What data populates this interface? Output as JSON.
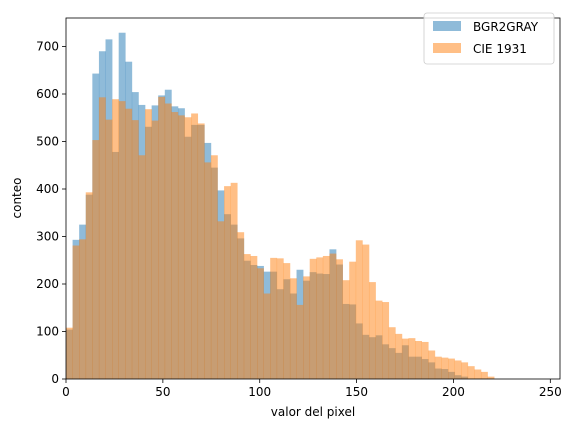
{
  "chart_data": {
    "type": "bar",
    "title": "",
    "xlabel": "valor del pixel",
    "ylabel": "conteo",
    "xlim": [
      0,
      255
    ],
    "ylim": [
      0,
      760
    ],
    "xticks": [
      0,
      50,
      100,
      150,
      200,
      250
    ],
    "yticks": [
      0,
      100,
      200,
      300,
      400,
      500,
      600,
      700
    ],
    "grid": false,
    "legend_position": "top-right",
    "bin_start": 0,
    "bin_width": 3.4,
    "series": [
      {
        "name": "BGR2GRAY",
        "color": "#1f77b4",
        "alpha": 0.5,
        "values": [
          104,
          293,
          325,
          388,
          643,
          690,
          715,
          478,
          729,
          668,
          604,
          577,
          531,
          576,
          597,
          609,
          574,
          570,
          510,
          535,
          535,
          497,
          445,
          397,
          347,
          325,
          296,
          249,
          240,
          238,
          226,
          226,
          189,
          210,
          180,
          230,
          207,
          225,
          222,
          221,
          273,
          241,
          158,
          157,
          117,
          93,
          88,
          92,
          73,
          65,
          55,
          71,
          47,
          47,
          42,
          35,
          22,
          21,
          15,
          8,
          5,
          1,
          1,
          1,
          1
        ]
      },
      {
        "name": "CIE 1931",
        "color": "#ff7f0e",
        "alpha": 0.5,
        "values": [
          108,
          281,
          294,
          393,
          503,
          593,
          546,
          589,
          585,
          569,
          545,
          471,
          568,
          544,
          594,
          580,
          562,
          555,
          551,
          559,
          538,
          456,
          471,
          332,
          406,
          413,
          309,
          263,
          259,
          233,
          180,
          255,
          254,
          244,
          212,
          156,
          216,
          253,
          256,
          259,
          264,
          252,
          208,
          247,
          292,
          283,
          204,
          165,
          162,
          109,
          95,
          85,
          86,
          80,
          78,
          60,
          47,
          45,
          43,
          39,
          35,
          27,
          20,
          15,
          5
        ]
      }
    ]
  }
}
